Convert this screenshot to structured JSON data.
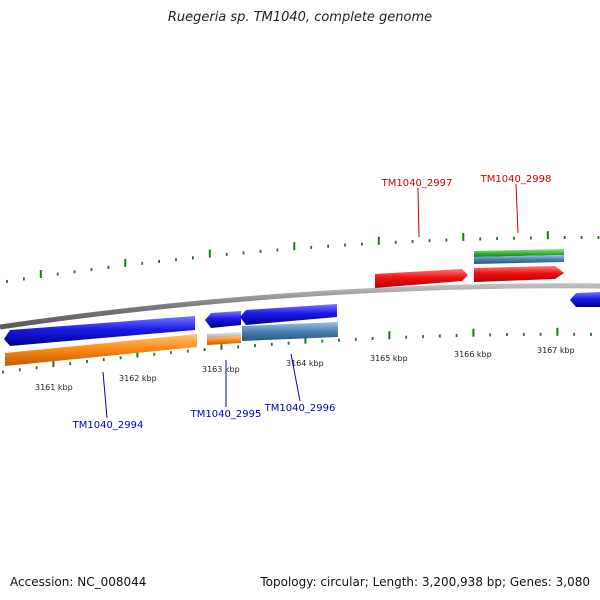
{
  "title": "Ruegeria sp. TM1040, complete genome",
  "footer": {
    "accession": "Accession: NC_008044",
    "summary": "Topology: circular; Length: 3,200,938 bp; Genes: 3,080"
  },
  "colors": {
    "backbone": "#8a8a8a",
    "tick": "#1a7a1a",
    "gene_forward": "#ee1111",
    "gene_reverse": "#1a1ae6",
    "cds": "#ff8c1a",
    "misc": "#4a7fb0",
    "rna": "#33bb33",
    "label_forward": "#cc0000",
    "label_reverse": "#0000bb"
  },
  "kbp_ticks": [
    "3161 kbp",
    "3162 kbp",
    "3163 kbp",
    "3164 kbp",
    "3165 kbp",
    "3166 kbp",
    "3167 kbp"
  ],
  "genes": [
    {
      "name": "TM1040_2994",
      "strand": "reverse"
    },
    {
      "name": "TM1040_2995",
      "strand": "reverse"
    },
    {
      "name": "TM1040_2996",
      "strand": "reverse"
    },
    {
      "name": "TM1040_2997",
      "strand": "forward"
    },
    {
      "name": "TM1040_2998",
      "strand": "forward"
    }
  ]
}
